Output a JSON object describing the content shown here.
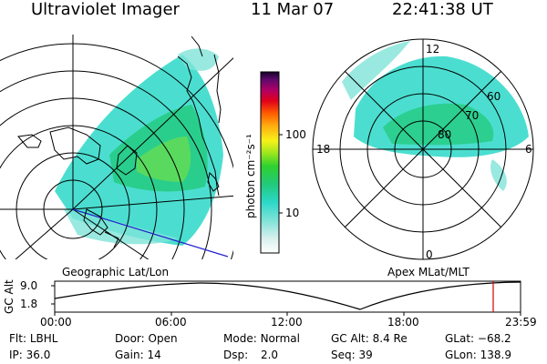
{
  "header": {
    "title": "Ultraviolet Imager",
    "date": "11 Mar 07",
    "time": "22:41:38 UT"
  },
  "left_panel": {
    "label": "Geographic Lat/Lon"
  },
  "right_panel": {
    "label": "Apex MLat/MLT",
    "mlt_labels": [
      "12",
      "18",
      "6",
      "0"
    ],
    "mlat_labels": [
      "60",
      "70",
      "80"
    ]
  },
  "colorbar": {
    "unit_label": "photon cm⁻²s⁻¹",
    "ticks": [
      "100",
      "10"
    ]
  },
  "timeline": {
    "axis_label": "GC Alt",
    "y_ticks": [
      "9.0",
      "1.8"
    ],
    "x_ticks": [
      "00:00",
      "06:00",
      "12:00",
      "18:00",
      "23:59"
    ]
  },
  "info": {
    "row1": [
      {
        "key": "Flt:",
        "val": "LBHL"
      },
      {
        "key": "Door:",
        "val": "Open"
      },
      {
        "key": "Mode:",
        "val": "Normal"
      },
      {
        "key": "GC Alt:",
        "val": "8.4 Re"
      },
      {
        "key": "GLat:",
        "val": "−68.2"
      }
    ],
    "row2": [
      {
        "key": "IP:",
        "val": "36.0"
      },
      {
        "key": "Gain:",
        "val": "14"
      },
      {
        "key": "Dsp:",
        "val": "2.0"
      },
      {
        "key": "Seq:",
        "val": "39"
      },
      {
        "key": "GLon:",
        "val": "138.9"
      }
    ]
  },
  "colors": {
    "accent_red": "#d40000",
    "line_blue": "#2222cc"
  }
}
